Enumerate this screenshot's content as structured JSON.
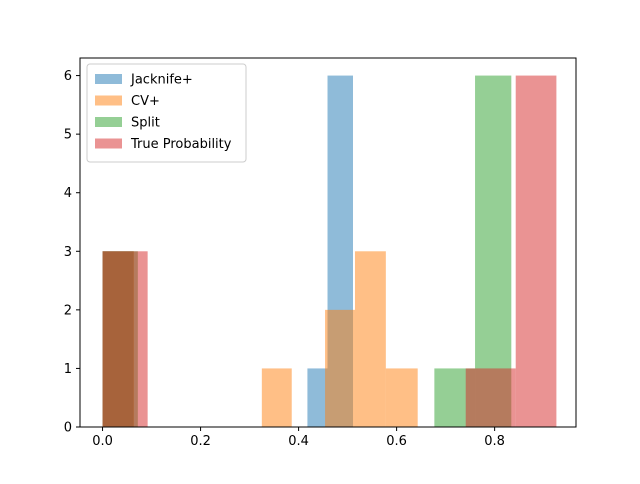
{
  "chart_data": {
    "type": "bar",
    "subtype": "overlapping-histogram",
    "title": "",
    "xlabel": "",
    "ylabel": "",
    "xlim": [
      -0.046,
      0.966
    ],
    "ylim": [
      0,
      6.3
    ],
    "xticks": [
      0.0,
      0.2,
      0.4,
      0.6,
      0.8
    ],
    "xtick_labels": [
      "0.0",
      "0.2",
      "0.4",
      "0.6",
      "0.8"
    ],
    "yticks": [
      0,
      1,
      2,
      3,
      4,
      5,
      6
    ],
    "ytick_labels": [
      "0",
      "1",
      "2",
      "3",
      "4",
      "5",
      "6"
    ],
    "grid": false,
    "legend_position": "upper-left",
    "bar_alpha": 0.5,
    "series": [
      {
        "name": "Jacknife+",
        "color": "#1f77b4",
        "bins": [
          {
            "x0": 0.0,
            "x1": 0.063,
            "count": 3
          },
          {
            "x0": 0.418,
            "x1": 0.459,
            "count": 1
          },
          {
            "x0": 0.459,
            "x1": 0.511,
            "count": 6
          }
        ]
      },
      {
        "name": "CV+",
        "color": "#ff7f0e",
        "bins": [
          {
            "x0": 0.0,
            "x1": 0.064,
            "count": 3
          },
          {
            "x0": 0.325,
            "x1": 0.386,
            "count": 1
          },
          {
            "x0": 0.454,
            "x1": 0.515,
            "count": 2
          },
          {
            "x0": 0.515,
            "x1": 0.578,
            "count": 3
          },
          {
            "x0": 0.578,
            "x1": 0.643,
            "count": 1
          }
        ]
      },
      {
        "name": "Split",
        "color": "#2ca02c",
        "bins": [
          {
            "x0": 0.0,
            "x1": 0.072,
            "count": 3
          },
          {
            "x0": 0.677,
            "x1": 0.76,
            "count": 1
          },
          {
            "x0": 0.76,
            "x1": 0.834,
            "count": 6
          }
        ]
      },
      {
        "name": "True Probability",
        "color": "#d62728",
        "bins": [
          {
            "x0": 0.0,
            "x1": 0.092,
            "count": 3
          },
          {
            "x0": 0.741,
            "x1": 0.843,
            "count": 1
          },
          {
            "x0": 0.843,
            "x1": 0.926,
            "count": 6
          }
        ]
      }
    ]
  }
}
